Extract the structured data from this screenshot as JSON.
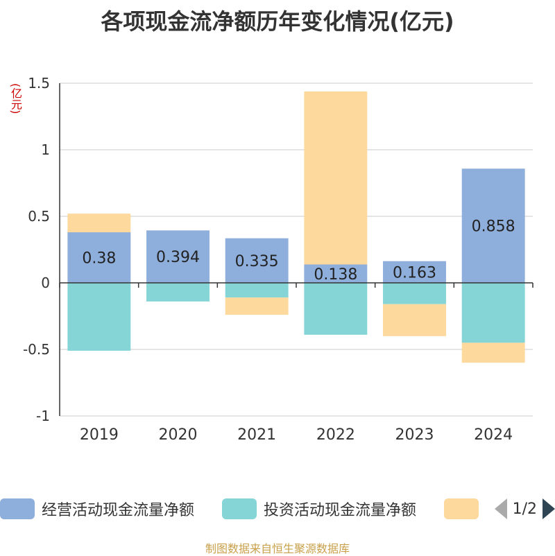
{
  "title": "各项现金流净额历年变化情况(亿元)",
  "unit_label": "(亿元)",
  "footer": "制图数据来自恒生聚源数据库",
  "legend": {
    "page_indicator": "1/2",
    "prev_icon": "triangle-left-icon",
    "next_icon": "triangle-right-icon"
  },
  "chart_data": {
    "type": "bar",
    "stacked": true,
    "categories": [
      "2019",
      "2020",
      "2021",
      "2022",
      "2023",
      "2024"
    ],
    "ylim": [
      -1,
      1.5
    ],
    "yticks": [
      -1,
      -0.5,
      0,
      0.5,
      1,
      1.5
    ],
    "ytick_labels": [
      "-1",
      "-0.5",
      "0",
      "0.5",
      "1",
      "1.5"
    ],
    "grid": true,
    "legend_position": "bottom",
    "series": [
      {
        "name": "经营活动现金流量净额",
        "color": "#8eaedb",
        "values": [
          0.38,
          0.394,
          0.335,
          0.138,
          0.163,
          0.858
        ],
        "labels": [
          "0.38",
          "0.394",
          "0.335",
          "0.138",
          "0.163",
          "0.858"
        ]
      },
      {
        "name": "投资活动现金流量净额",
        "color": "#86d5d6",
        "values": [
          -0.51,
          -0.14,
          -0.11,
          -0.39,
          -0.16,
          -0.45
        ]
      },
      {
        "name": "",
        "color": "#fed99d",
        "values": [
          0.14,
          0,
          -0.13,
          1.3,
          -0.24,
          -0.15
        ]
      }
    ]
  }
}
